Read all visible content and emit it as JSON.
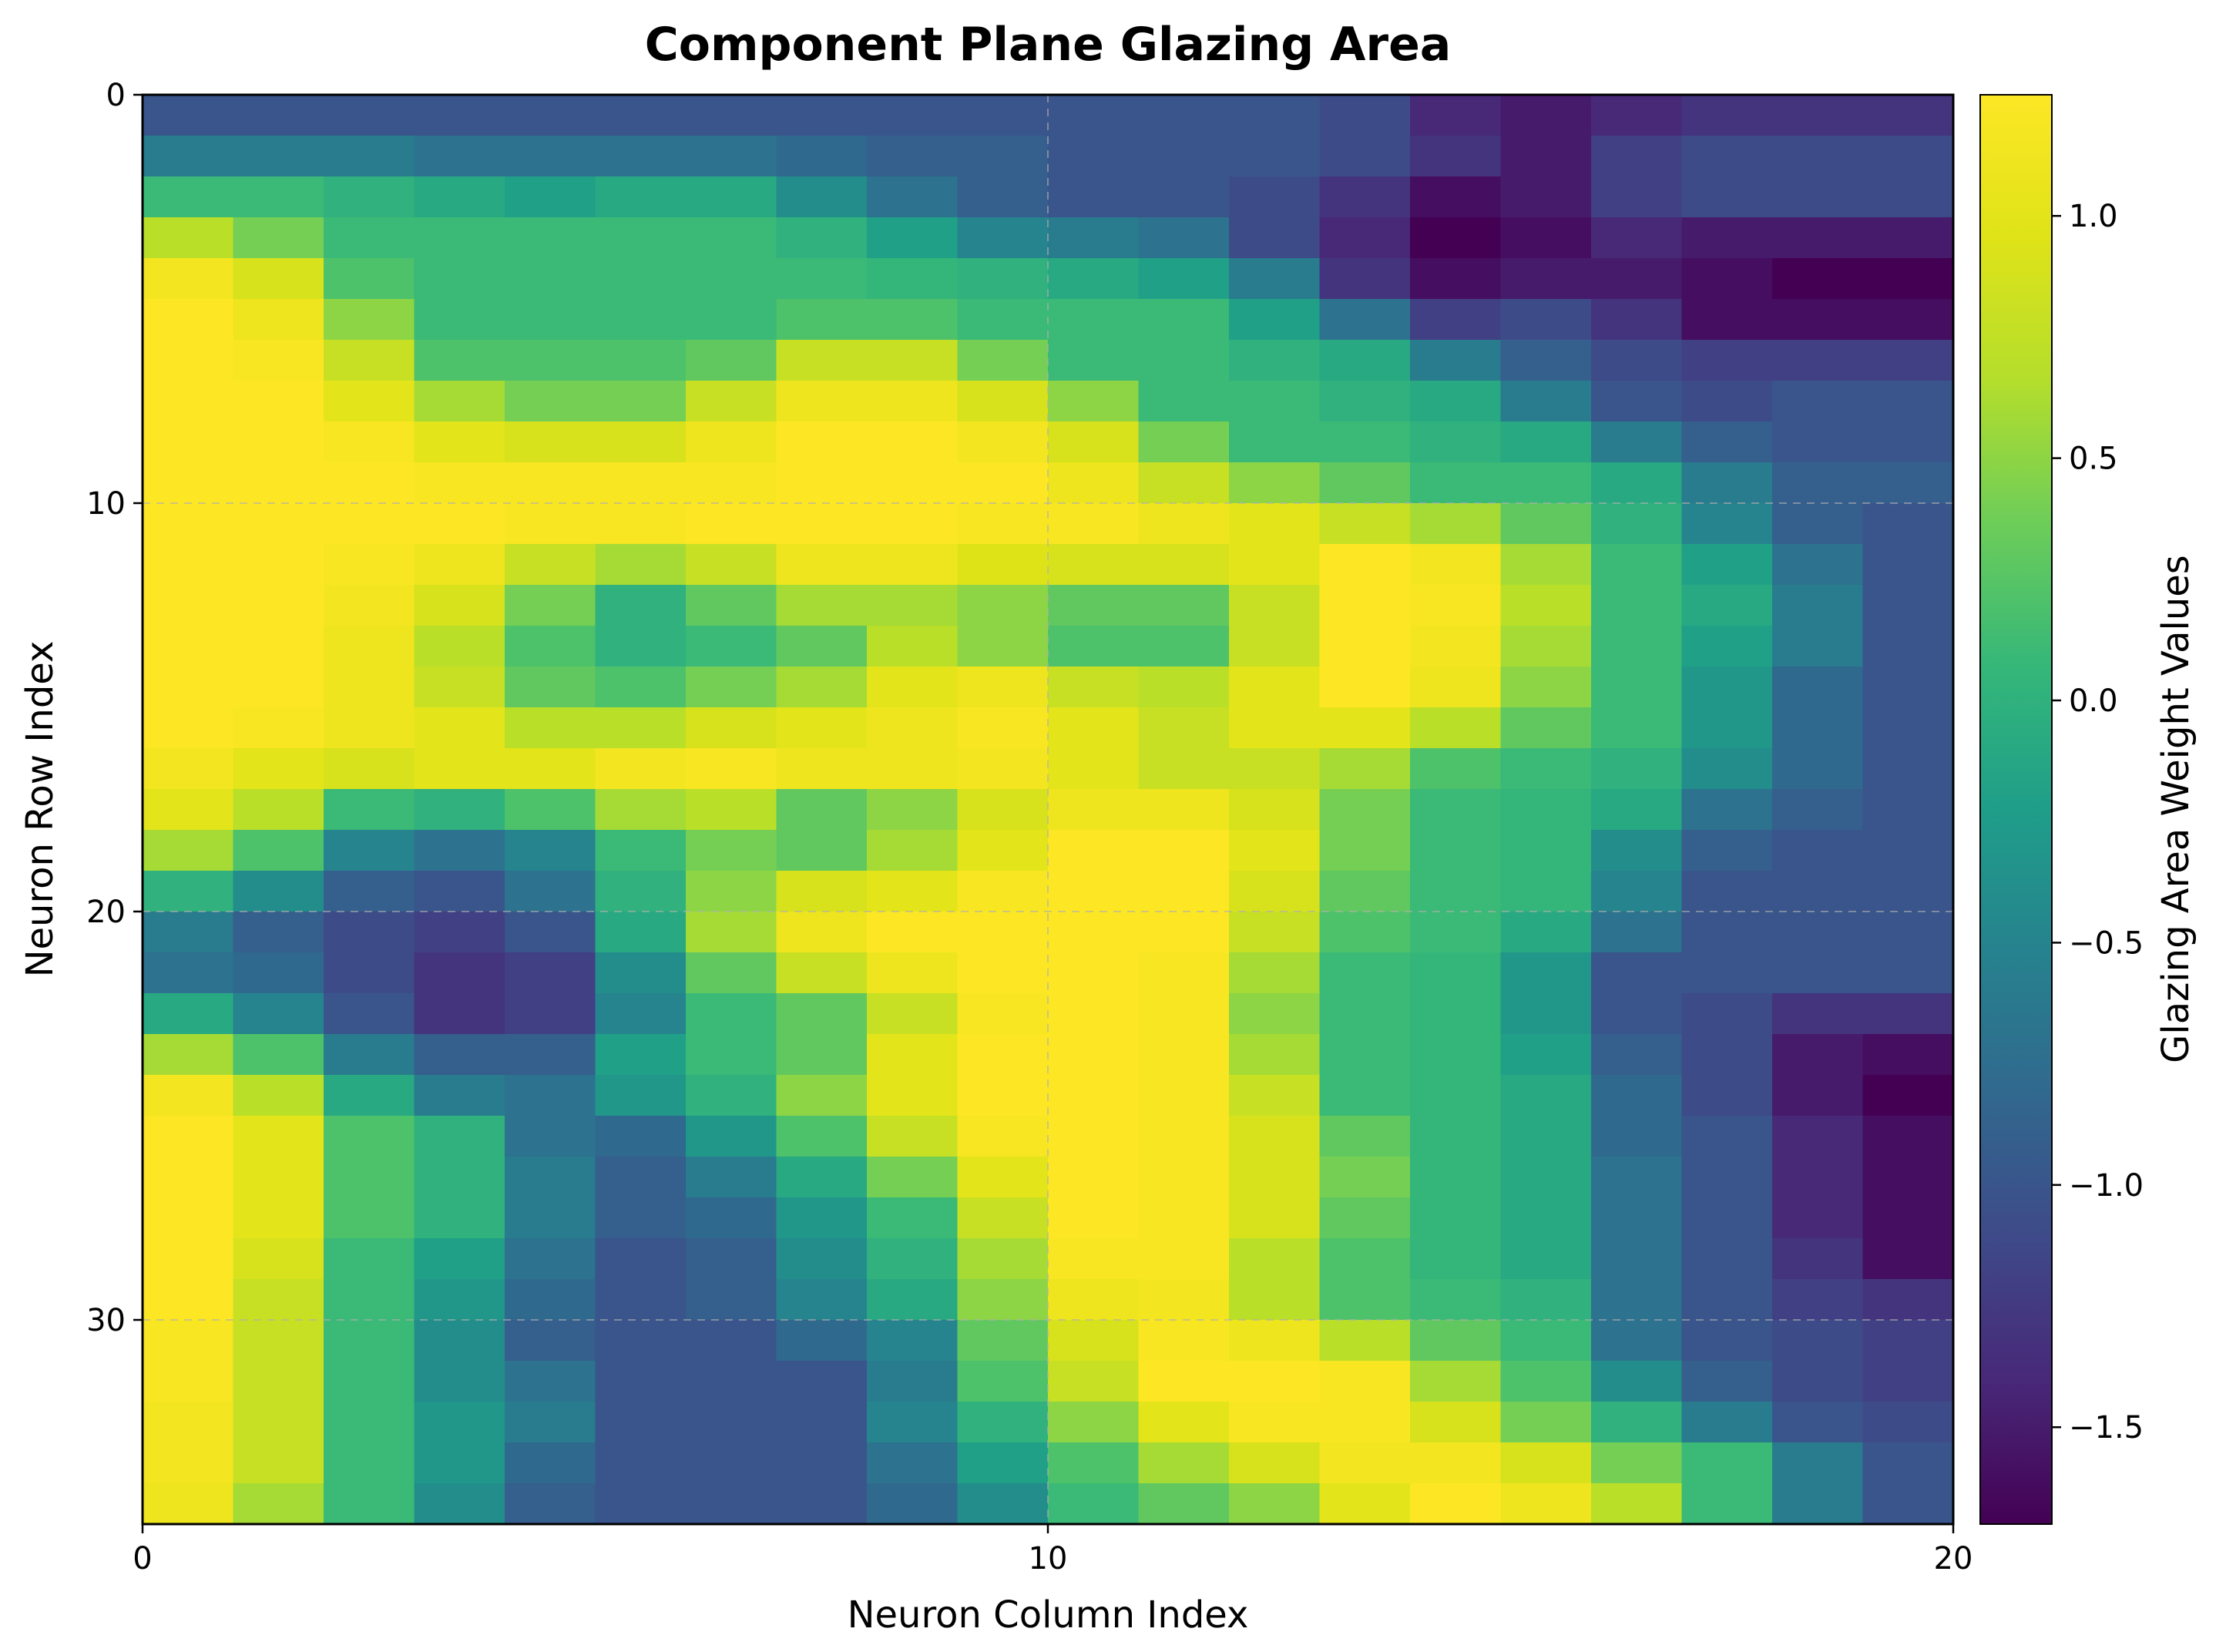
{
  "chart_data": {
    "type": "heatmap",
    "title": "Component Plane Glazing Area",
    "xlabel": "Neuron Column Index",
    "ylabel": "Neuron Row Index",
    "colorbar_label": "Glazing Area Weight Values",
    "colormap": "viridis",
    "xlim": [
      0,
      20
    ],
    "ylim": [
      35,
      0
    ],
    "x_ticks": [
      0,
      10,
      20
    ],
    "x_tick_labels": [
      "0",
      "10",
      "20"
    ],
    "y_ticks": [
      0,
      10,
      20,
      30
    ],
    "y_tick_labels": [
      "0",
      "10",
      "20",
      "30"
    ],
    "color_range": [
      -1.7,
      1.25
    ],
    "colorbar_ticks": [
      1.0,
      0.5,
      0.0,
      -0.5,
      -1.0,
      -1.5
    ],
    "colorbar_tick_labels": [
      "1.0",
      "0.5",
      "0.0",
      "−0.5",
      "−1.0",
      "−1.5"
    ],
    "grid": true,
    "n_rows": 35,
    "n_cols": 20,
    "values": [
      [
        -1.0,
        -1.0,
        -1.0,
        -1.0,
        -1.0,
        -1.0,
        -1.0,
        -1.0,
        -1.0,
        -1.0,
        -1.0,
        -1.0,
        -1.0,
        -1.1,
        -1.4,
        -1.5,
        -1.4,
        -1.3,
        -1.3,
        -1.3
      ],
      [
        -0.6,
        -0.6,
        -0.6,
        -0.7,
        -0.7,
        -0.7,
        -0.7,
        -0.8,
        -0.9,
        -0.9,
        -1.0,
        -1.0,
        -1.0,
        -1.1,
        -1.3,
        -1.5,
        -1.2,
        -1.1,
        -1.1,
        -1.1
      ],
      [
        0.1,
        0.1,
        0.0,
        -0.1,
        -0.2,
        -0.1,
        -0.1,
        -0.4,
        -0.7,
        -0.9,
        -1.0,
        -1.0,
        -1.1,
        -1.3,
        -1.6,
        -1.5,
        -1.2,
        -1.1,
        -1.1,
        -1.1
      ],
      [
        0.7,
        0.4,
        0.1,
        0.1,
        0.1,
        0.1,
        0.1,
        0.0,
        -0.2,
        -0.5,
        -0.6,
        -0.7,
        -1.1,
        -1.4,
        -1.7,
        -1.6,
        -1.4,
        -1.5,
        -1.5,
        -1.5
      ],
      [
        1.15,
        0.9,
        0.2,
        0.1,
        0.1,
        0.1,
        0.1,
        0.1,
        0.05,
        0.0,
        -0.1,
        -0.2,
        -0.6,
        -1.3,
        -1.6,
        -1.5,
        -1.5,
        -1.6,
        -1.7,
        -1.7
      ],
      [
        1.25,
        1.1,
        0.5,
        0.1,
        0.1,
        0.1,
        0.1,
        0.2,
        0.2,
        0.1,
        0.1,
        0.1,
        -0.2,
        -0.7,
        -1.2,
        -1.1,
        -1.3,
        -1.6,
        -1.6,
        -1.6
      ],
      [
        1.25,
        1.2,
        0.8,
        0.2,
        0.2,
        0.2,
        0.3,
        0.8,
        0.8,
        0.4,
        0.1,
        0.1,
        0.0,
        -0.1,
        -0.6,
        -0.9,
        -1.1,
        -1.2,
        -1.2,
        -1.2
      ],
      [
        1.25,
        1.25,
        1.0,
        0.6,
        0.4,
        0.4,
        0.8,
        1.1,
        1.1,
        0.9,
        0.5,
        0.1,
        0.1,
        0.0,
        -0.1,
        -0.6,
        -1.0,
        -1.1,
        -1.0,
        -1.0
      ],
      [
        1.25,
        1.25,
        1.2,
        1.0,
        0.9,
        0.9,
        1.1,
        1.25,
        1.25,
        1.15,
        0.9,
        0.4,
        0.1,
        0.1,
        0.0,
        -0.1,
        -0.6,
        -0.9,
        -1.0,
        -1.0
      ],
      [
        1.25,
        1.25,
        1.25,
        1.2,
        1.2,
        1.2,
        1.2,
        1.25,
        1.25,
        1.25,
        1.1,
        0.8,
        0.5,
        0.3,
        0.1,
        0.1,
        -0.1,
        -0.6,
        -0.9,
        -0.9
      ],
      [
        1.25,
        1.25,
        1.25,
        1.25,
        1.2,
        1.2,
        1.25,
        1.25,
        1.25,
        1.2,
        1.2,
        1.1,
        1.0,
        0.8,
        0.6,
        0.3,
        0.0,
        -0.5,
        -0.9,
        -1.0
      ],
      [
        1.25,
        1.25,
        1.2,
        1.1,
        0.8,
        0.6,
        0.8,
        1.1,
        1.1,
        0.95,
        0.9,
        0.9,
        1.0,
        1.25,
        1.15,
        0.6,
        0.1,
        -0.2,
        -0.7,
        -1.0
      ],
      [
        1.25,
        1.25,
        1.15,
        0.9,
        0.4,
        0.0,
        0.3,
        0.6,
        0.6,
        0.5,
        0.3,
        0.3,
        0.8,
        1.25,
        1.2,
        0.7,
        0.1,
        -0.1,
        -0.6,
        -1.0
      ],
      [
        1.25,
        1.25,
        1.1,
        0.7,
        0.2,
        0.0,
        0.1,
        0.3,
        0.7,
        0.5,
        0.2,
        0.2,
        0.8,
        1.25,
        1.15,
        0.6,
        0.1,
        -0.2,
        -0.6,
        -1.0
      ],
      [
        1.25,
        1.25,
        1.1,
        0.8,
        0.3,
        0.2,
        0.4,
        0.6,
        1.0,
        1.1,
        0.8,
        0.7,
        1.0,
        1.25,
        1.1,
        0.5,
        0.1,
        -0.3,
        -0.8,
        -1.0
      ],
      [
        1.25,
        1.2,
        1.1,
        1.0,
        0.7,
        0.7,
        0.9,
        1.0,
        1.1,
        1.2,
        1.0,
        0.8,
        1.0,
        1.0,
        0.7,
        0.3,
        0.1,
        -0.3,
        -0.8,
        -1.0
      ],
      [
        1.15,
        1.0,
        0.9,
        1.0,
        1.0,
        1.15,
        1.2,
        1.1,
        1.1,
        1.15,
        1.0,
        0.8,
        0.8,
        0.6,
        0.2,
        0.1,
        0.0,
        -0.4,
        -0.8,
        -1.0
      ],
      [
        1.0,
        0.7,
        0.1,
        0.0,
        0.2,
        0.6,
        0.7,
        0.3,
        0.5,
        0.9,
        1.1,
        1.1,
        0.9,
        0.4,
        0.1,
        0.05,
        -0.1,
        -0.7,
        -0.9,
        -1.0
      ],
      [
        0.6,
        0.2,
        -0.5,
        -0.7,
        -0.5,
        0.1,
        0.4,
        0.3,
        0.6,
        1.0,
        1.25,
        1.25,
        1.0,
        0.4,
        0.1,
        0.05,
        -0.4,
        -0.9,
        -1.0,
        -1.0
      ],
      [
        0.0,
        -0.4,
        -0.9,
        -1.0,
        -0.7,
        0.0,
        0.5,
        0.9,
        1.0,
        1.2,
        1.25,
        1.25,
        0.9,
        0.3,
        0.1,
        0.05,
        -0.5,
        -1.0,
        -1.0,
        -1.0
      ],
      [
        -0.6,
        -0.9,
        -1.1,
        -1.2,
        -1.0,
        -0.1,
        0.6,
        1.1,
        1.25,
        1.25,
        1.25,
        1.25,
        0.8,
        0.2,
        0.1,
        -0.1,
        -0.7,
        -1.0,
        -1.0,
        -1.0
      ],
      [
        -0.7,
        -0.8,
        -1.1,
        -1.3,
        -1.2,
        -0.4,
        0.3,
        0.8,
        1.1,
        1.25,
        1.25,
        1.2,
        0.6,
        0.1,
        0.05,
        -0.3,
        -1.0,
        -1.0,
        -1.0,
        -1.0
      ],
      [
        -0.1,
        -0.5,
        -1.0,
        -1.3,
        -1.2,
        -0.5,
        0.1,
        0.3,
        0.8,
        1.2,
        1.25,
        1.2,
        0.5,
        0.1,
        0.05,
        -0.3,
        -1.0,
        -1.1,
        -1.3,
        -1.3
      ],
      [
        0.6,
        0.2,
        -0.6,
        -0.9,
        -0.9,
        -0.2,
        0.1,
        0.3,
        1.0,
        1.25,
        1.25,
        1.2,
        0.6,
        0.1,
        0.05,
        -0.2,
        -0.9,
        -1.1,
        -1.5,
        -1.6
      ],
      [
        1.15,
        0.7,
        -0.1,
        -0.6,
        -0.7,
        -0.3,
        0.0,
        0.5,
        1.0,
        1.25,
        1.25,
        1.2,
        0.8,
        0.1,
        0.05,
        -0.1,
        -0.8,
        -1.1,
        -1.5,
        -1.7
      ],
      [
        1.25,
        1.0,
        0.2,
        0.0,
        -0.7,
        -0.8,
        -0.3,
        0.2,
        0.8,
        1.2,
        1.25,
        1.2,
        0.9,
        0.3,
        0.05,
        -0.1,
        -0.8,
        -1.0,
        -1.4,
        -1.6
      ],
      [
        1.25,
        1.0,
        0.2,
        0.0,
        -0.6,
        -0.9,
        -0.6,
        -0.1,
        0.4,
        1.0,
        1.25,
        1.2,
        0.9,
        0.4,
        0.05,
        -0.1,
        -0.7,
        -1.0,
        -1.4,
        -1.6
      ],
      [
        1.25,
        1.0,
        0.2,
        0.0,
        -0.6,
        -0.9,
        -0.8,
        -0.3,
        0.1,
        0.8,
        1.25,
        1.2,
        0.9,
        0.3,
        0.05,
        -0.1,
        -0.7,
        -1.0,
        -1.4,
        -1.6
      ],
      [
        1.25,
        0.9,
        0.1,
        -0.2,
        -0.7,
        -1.0,
        -0.9,
        -0.4,
        0.0,
        0.6,
        1.2,
        1.2,
        0.7,
        0.2,
        0.05,
        -0.1,
        -0.7,
        -1.0,
        -1.3,
        -1.6
      ],
      [
        1.25,
        0.8,
        0.1,
        -0.3,
        -0.8,
        -1.0,
        -0.9,
        -0.5,
        -0.1,
        0.5,
        1.1,
        1.15,
        0.7,
        0.2,
        0.1,
        0.0,
        -0.7,
        -1.0,
        -1.2,
        -1.3
      ],
      [
        1.2,
        0.8,
        0.1,
        -0.4,
        -0.9,
        -1.0,
        -1.0,
        -0.8,
        -0.5,
        0.3,
        0.9,
        1.2,
        1.1,
        0.7,
        0.3,
        0.1,
        -0.7,
        -1.0,
        -1.1,
        -1.2
      ],
      [
        1.2,
        0.8,
        0.1,
        -0.4,
        -0.7,
        -1.0,
        -1.0,
        -1.0,
        -0.6,
        0.2,
        0.8,
        1.25,
        1.25,
        1.2,
        0.6,
        0.2,
        -0.4,
        -0.9,
        -1.1,
        -1.2
      ],
      [
        1.15,
        0.8,
        0.1,
        -0.3,
        -0.6,
        -1.0,
        -1.0,
        -1.0,
        -0.5,
        0.0,
        0.5,
        1.0,
        1.2,
        1.2,
        0.9,
        0.4,
        0.0,
        -0.6,
        -1.0,
        -1.1
      ],
      [
        1.15,
        0.8,
        0.1,
        -0.3,
        -0.8,
        -1.0,
        -1.0,
        -1.0,
        -0.7,
        -0.2,
        0.2,
        0.6,
        0.9,
        1.15,
        1.15,
        0.9,
        0.4,
        0.1,
        -0.6,
        -1.0
      ],
      [
        1.1,
        0.6,
        0.1,
        -0.4,
        -0.9,
        -1.0,
        -1.0,
        -1.0,
        -0.8,
        -0.4,
        0.1,
        0.3,
        0.5,
        1.0,
        1.25,
        1.1,
        0.7,
        0.1,
        -0.6,
        -1.0
      ]
    ]
  }
}
